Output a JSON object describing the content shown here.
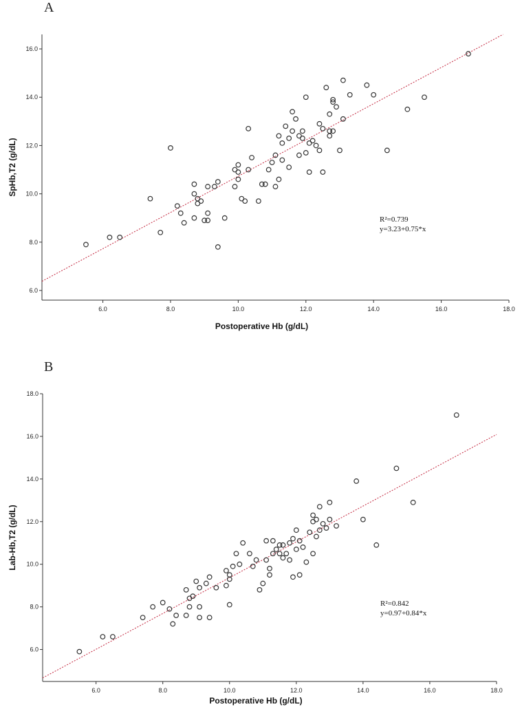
{
  "chart_data": [
    {
      "panel": "A",
      "type": "scatter",
      "xlabel": "Postoperative Hb (g/dL)",
      "ylabel": "SpHb,T2 (g/dL)",
      "xlim": [
        4.2,
        18.0
      ],
      "ylim": [
        5.6,
        16.6
      ],
      "xticks": [
        "6.0",
        "8.0",
        "10.0",
        "12.0",
        "14.0",
        "16.0",
        "18.0"
      ],
      "yticks": [
        "6.0",
        "8.0",
        "10.0",
        "12.0",
        "14.0",
        "16.0"
      ],
      "annotations": [
        "R²=0.739",
        "y=3.23+0.75*x"
      ],
      "fit": {
        "intercept": 3.23,
        "slope": 0.75
      },
      "points": [
        [
          5.5,
          7.9
        ],
        [
          6.2,
          8.2
        ],
        [
          6.5,
          8.2
        ],
        [
          7.4,
          9.8
        ],
        [
          7.7,
          8.4
        ],
        [
          8.0,
          11.9
        ],
        [
          8.2,
          9.5
        ],
        [
          8.3,
          9.2
        ],
        [
          8.4,
          8.8
        ],
        [
          8.7,
          10.4
        ],
        [
          8.7,
          10.0
        ],
        [
          8.7,
          9.0
        ],
        [
          8.8,
          9.8
        ],
        [
          8.8,
          9.6
        ],
        [
          8.9,
          9.7
        ],
        [
          9.0,
          8.9
        ],
        [
          9.1,
          8.9
        ],
        [
          9.1,
          10.3
        ],
        [
          9.1,
          9.2
        ],
        [
          9.3,
          10.3
        ],
        [
          9.4,
          10.5
        ],
        [
          9.4,
          7.8
        ],
        [
          9.6,
          9.0
        ],
        [
          9.9,
          10.3
        ],
        [
          9.9,
          11.0
        ],
        [
          10.0,
          11.2
        ],
        [
          10.0,
          10.9
        ],
        [
          10.0,
          10.6
        ],
        [
          10.1,
          9.8
        ],
        [
          10.2,
          9.7
        ],
        [
          10.3,
          11.0
        ],
        [
          10.3,
          12.7
        ],
        [
          10.4,
          11.5
        ],
        [
          10.6,
          9.7
        ],
        [
          10.7,
          10.4
        ],
        [
          10.8,
          10.4
        ],
        [
          10.9,
          11.0
        ],
        [
          11.0,
          11.3
        ],
        [
          11.1,
          10.3
        ],
        [
          11.1,
          11.6
        ],
        [
          11.2,
          12.4
        ],
        [
          11.2,
          10.6
        ],
        [
          11.3,
          12.1
        ],
        [
          11.3,
          11.4
        ],
        [
          11.4,
          12.8
        ],
        [
          11.5,
          11.1
        ],
        [
          11.5,
          12.3
        ],
        [
          11.6,
          13.4
        ],
        [
          11.6,
          12.6
        ],
        [
          11.7,
          13.1
        ],
        [
          11.8,
          12.4
        ],
        [
          11.8,
          11.6
        ],
        [
          11.9,
          12.3
        ],
        [
          12.0,
          14.0
        ],
        [
          12.0,
          11.7
        ],
        [
          12.1,
          12.1
        ],
        [
          12.1,
          10.9
        ],
        [
          12.2,
          12.2
        ],
        [
          12.3,
          12.0
        ],
        [
          12.4,
          11.8
        ],
        [
          12.4,
          12.9
        ],
        [
          12.5,
          12.7
        ],
        [
          12.5,
          10.9
        ],
        [
          12.6,
          14.4
        ],
        [
          12.7,
          13.3
        ],
        [
          12.7,
          12.6
        ],
        [
          12.8,
          13.9
        ],
        [
          12.8,
          13.8
        ],
        [
          12.8,
          12.6
        ],
        [
          12.9,
          13.6
        ],
        [
          13.0,
          11.8
        ],
        [
          13.1,
          14.7
        ],
        [
          13.1,
          13.1
        ],
        [
          13.3,
          14.1
        ],
        [
          13.8,
          14.5
        ],
        [
          14.0,
          14.1
        ],
        [
          14.4,
          11.8
        ],
        [
          15.0,
          13.5
        ],
        [
          15.5,
          14.0
        ],
        [
          16.8,
          15.8
        ],
        [
          12.7,
          12.4
        ],
        [
          11.9,
          12.6
        ]
      ]
    },
    {
      "panel": "B",
      "type": "scatter",
      "xlabel": "Postoperative Hb (g/dL)",
      "ylabel": "Lab-Hb,T2 (g/dL)",
      "xlim": [
        4.4,
        18.0
      ],
      "ylim": [
        4.5,
        18.0
      ],
      "xticks": [
        "6.0",
        "8.0",
        "10.0",
        "12.0",
        "14.0",
        "16.0",
        "18.0"
      ],
      "yticks": [
        "6.0",
        "8.0",
        "10.0",
        "12.0",
        "14.0",
        "16.0",
        "18.0"
      ],
      "annotations": [
        "R²=0.842",
        "y=0.97+0.84*x"
      ],
      "fit": {
        "intercept": 0.97,
        "slope": 0.84
      },
      "points": [
        [
          5.5,
          5.9
        ],
        [
          6.2,
          6.6
        ],
        [
          6.5,
          6.6
        ],
        [
          7.4,
          7.5
        ],
        [
          7.7,
          8.0
        ],
        [
          8.0,
          8.2
        ],
        [
          8.2,
          7.9
        ],
        [
          8.3,
          7.2
        ],
        [
          8.4,
          7.6
        ],
        [
          8.7,
          8.8
        ],
        [
          8.7,
          7.6
        ],
        [
          8.8,
          8.0
        ],
        [
          8.8,
          8.4
        ],
        [
          8.9,
          8.5
        ],
        [
          9.0,
          9.2
        ],
        [
          9.1,
          7.5
        ],
        [
          9.1,
          8.0
        ],
        [
          9.1,
          8.9
        ],
        [
          9.3,
          9.1
        ],
        [
          9.4,
          9.4
        ],
        [
          9.4,
          7.5
        ],
        [
          9.6,
          8.9
        ],
        [
          9.9,
          9.0
        ],
        [
          9.9,
          9.7
        ],
        [
          10.0,
          9.5
        ],
        [
          10.0,
          9.3
        ],
        [
          10.0,
          8.1
        ],
        [
          10.1,
          9.9
        ],
        [
          10.2,
          10.5
        ],
        [
          10.3,
          10.0
        ],
        [
          10.4,
          11.0
        ],
        [
          10.6,
          10.5
        ],
        [
          10.7,
          9.9
        ],
        [
          10.8,
          10.2
        ],
        [
          10.9,
          8.8
        ],
        [
          11.0,
          9.1
        ],
        [
          11.1,
          11.1
        ],
        [
          11.1,
          10.2
        ],
        [
          11.2,
          9.8
        ],
        [
          11.2,
          9.5
        ],
        [
          11.3,
          11.1
        ],
        [
          11.3,
          10.5
        ],
        [
          11.4,
          10.7
        ],
        [
          11.5,
          10.9
        ],
        [
          11.5,
          10.5
        ],
        [
          11.6,
          10.3
        ],
        [
          11.6,
          10.9
        ],
        [
          11.7,
          10.5
        ],
        [
          11.8,
          11.0
        ],
        [
          11.8,
          10.2
        ],
        [
          11.9,
          9.4
        ],
        [
          12.0,
          11.6
        ],
        [
          12.0,
          10.7
        ],
        [
          12.1,
          9.5
        ],
        [
          12.1,
          11.1
        ],
        [
          12.2,
          10.8
        ],
        [
          12.3,
          10.1
        ],
        [
          12.4,
          11.5
        ],
        [
          12.5,
          10.5
        ],
        [
          12.5,
          12.3
        ],
        [
          12.6,
          12.1
        ],
        [
          12.6,
          11.3
        ],
        [
          12.7,
          11.6
        ],
        [
          12.7,
          12.7
        ],
        [
          12.8,
          11.9
        ],
        [
          12.9,
          11.7
        ],
        [
          13.0,
          12.9
        ],
        [
          13.0,
          12.1
        ],
        [
          13.2,
          11.8
        ],
        [
          13.8,
          13.9
        ],
        [
          14.0,
          12.1
        ],
        [
          14.4,
          10.9
        ],
        [
          15.0,
          14.5
        ],
        [
          15.5,
          12.9
        ],
        [
          16.8,
          17.0
        ],
        [
          12.5,
          12.0
        ],
        [
          11.9,
          11.2
        ]
      ]
    }
  ]
}
